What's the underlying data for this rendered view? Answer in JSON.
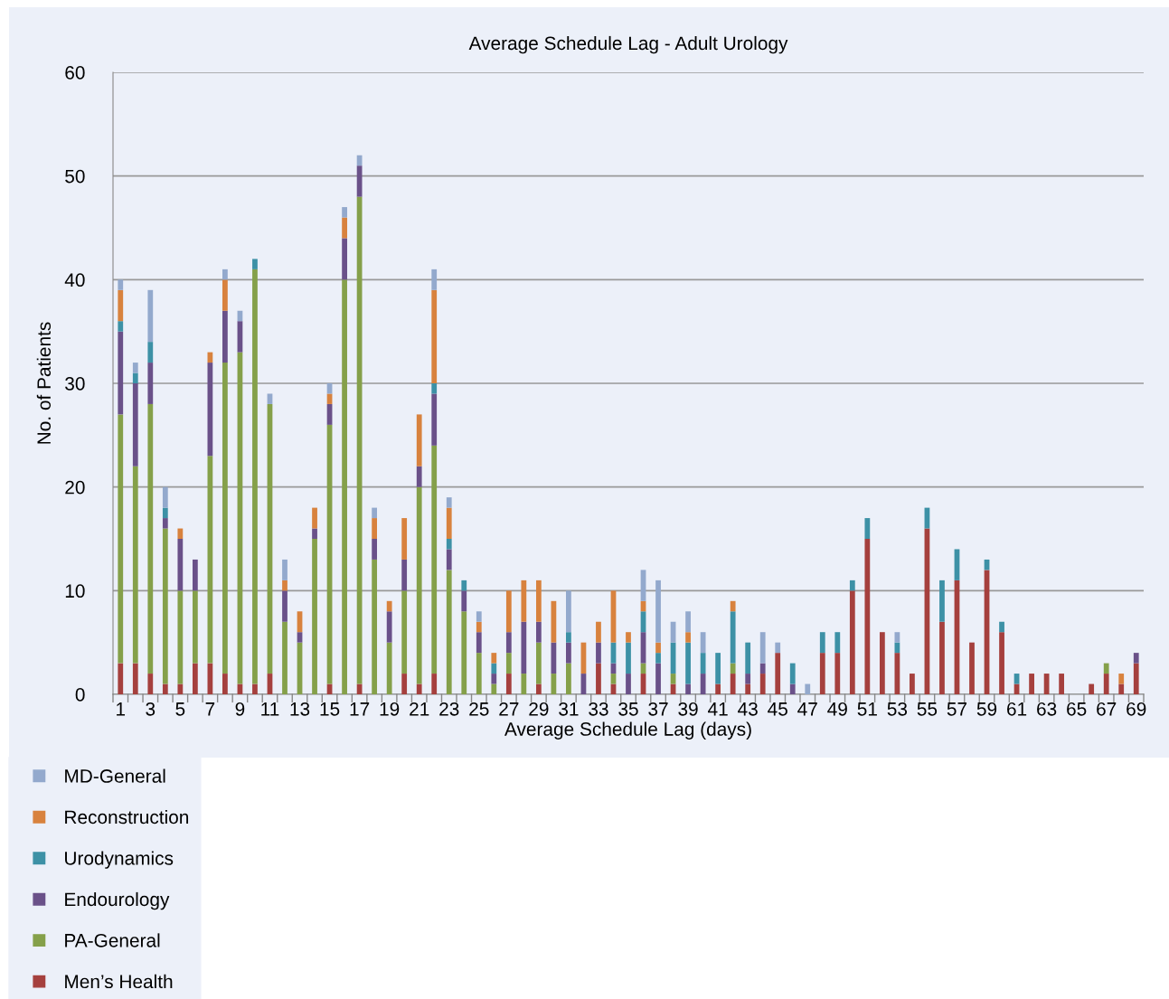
{
  "chart_data": {
    "type": "bar",
    "title": "Average Schedule Lag - Adult Urology",
    "xlabel": "Average Schedule Lag (days)",
    "ylabel": "No. of Patients",
    "categories": [
      "1",
      null,
      "3",
      null,
      "5",
      null,
      "7",
      null,
      "9",
      null,
      "11",
      null,
      "13",
      null,
      "15",
      null,
      "17",
      null,
      "19",
      null,
      "21",
      null,
      "23",
      null,
      "25",
      null,
      "27",
      null,
      "29",
      null,
      "31",
      null,
      "33",
      null,
      "35",
      null,
      "37",
      null,
      "39",
      null,
      "41",
      null,
      "43",
      null,
      "45",
      null,
      "47",
      null,
      "49",
      null,
      "51",
      null,
      "53",
      null,
      "55",
      null,
      "57",
      null,
      "59",
      null,
      "61",
      null,
      "63",
      null,
      "65",
      null,
      "67",
      null,
      "69"
    ],
    "stacked": true,
    "ylim": [
      0,
      60
    ],
    "yticks": [
      0,
      10,
      20,
      30,
      40,
      50,
      60
    ],
    "grid": "y",
    "legend": "bottom left",
    "series": [
      {
        "name": "Men’s Health",
        "color": "#a5403e",
        "values": [
          3,
          3,
          2,
          1,
          1,
          3,
          3,
          2,
          1,
          1,
          2,
          0,
          0,
          0,
          1,
          0,
          1,
          0,
          0,
          2,
          1,
          2,
          0,
          0,
          0,
          0,
          2,
          0,
          1,
          0,
          0,
          0,
          3,
          1,
          0,
          2,
          0,
          1,
          0,
          0,
          1,
          2,
          1,
          2,
          4,
          0,
          0,
          4,
          4,
          10,
          15,
          6,
          4,
          2,
          16,
          7,
          11,
          5,
          12,
          6,
          1,
          2,
          2,
          2,
          0,
          1,
          2,
          1,
          3
        ]
      },
      {
        "name": "PA-General",
        "color": "#85a04a",
        "values": [
          24,
          19,
          26,
          15,
          9,
          7,
          20,
          30,
          32,
          40,
          26,
          7,
          5,
          15,
          25,
          40,
          47,
          13,
          5,
          8,
          19,
          22,
          12,
          8,
          4,
          1,
          2,
          2,
          4,
          2,
          3,
          0,
          0,
          1,
          0,
          1,
          0,
          1,
          0,
          0,
          0,
          1,
          0,
          0,
          0,
          0,
          0,
          0,
          0,
          0,
          0,
          0,
          0,
          0,
          0,
          0,
          0,
          0,
          0,
          0,
          0,
          0,
          0,
          0,
          0,
          0,
          1,
          0,
          0
        ]
      },
      {
        "name": "Endourology",
        "color": "#6a5189",
        "values": [
          8,
          8,
          4,
          1,
          5,
          3,
          9,
          5,
          3,
          0,
          0,
          3,
          1,
          1,
          2,
          4,
          3,
          2,
          3,
          3,
          2,
          5,
          2,
          2,
          2,
          1,
          2,
          5,
          2,
          3,
          2,
          2,
          2,
          1,
          2,
          3,
          3,
          0,
          1,
          2,
          0,
          0,
          1,
          1,
          0,
          1,
          0,
          0,
          0,
          0,
          0,
          0,
          0,
          0,
          0,
          0,
          0,
          0,
          0,
          0,
          0,
          0,
          0,
          0,
          0,
          0,
          0,
          0,
          1
        ]
      },
      {
        "name": "Urodynamics",
        "color": "#3d91a6",
        "values": [
          1,
          1,
          2,
          1,
          0,
          0,
          0,
          0,
          0,
          1,
          0,
          0,
          0,
          0,
          0,
          0,
          0,
          0,
          0,
          0,
          0,
          1,
          1,
          1,
          0,
          1,
          0,
          0,
          0,
          0,
          1,
          0,
          0,
          2,
          3,
          2,
          1,
          3,
          4,
          2,
          3,
          5,
          3,
          0,
          0,
          2,
          0,
          2,
          2,
          1,
          2,
          0,
          1,
          0,
          2,
          4,
          3,
          0,
          1,
          1,
          1,
          0,
          0,
          0,
          0,
          0,
          0,
          0,
          0
        ]
      },
      {
        "name": "Reconstruction",
        "color": "#d8823e",
        "values": [
          3,
          0,
          0,
          0,
          1,
          0,
          1,
          3,
          0,
          0,
          0,
          1,
          2,
          2,
          1,
          2,
          0,
          2,
          1,
          4,
          5,
          9,
          3,
          0,
          1,
          1,
          4,
          4,
          4,
          4,
          0,
          3,
          2,
          5,
          1,
          1,
          1,
          0,
          1,
          0,
          0,
          1,
          0,
          0,
          0,
          0,
          0,
          0,
          0,
          0,
          0,
          0,
          0,
          0,
          0,
          0,
          0,
          0,
          0,
          0,
          0,
          0,
          0,
          0,
          0,
          0,
          0,
          1,
          0
        ]
      },
      {
        "name": "MD-General",
        "color": "#93a9cd",
        "values": [
          1,
          1,
          5,
          2,
          0,
          0,
          0,
          1,
          1,
          0,
          1,
          2,
          0,
          0,
          1,
          1,
          1,
          1,
          0,
          0,
          0,
          2,
          1,
          0,
          1,
          0,
          0,
          0,
          0,
          0,
          4,
          0,
          0,
          0,
          0,
          3,
          6,
          2,
          2,
          2,
          0,
          0,
          0,
          3,
          1,
          0,
          1,
          0,
          0,
          0,
          0,
          0,
          1,
          0,
          0,
          0,
          0,
          0,
          0,
          0,
          0,
          0,
          0,
          0,
          0,
          0,
          0,
          0,
          0
        ]
      }
    ]
  }
}
